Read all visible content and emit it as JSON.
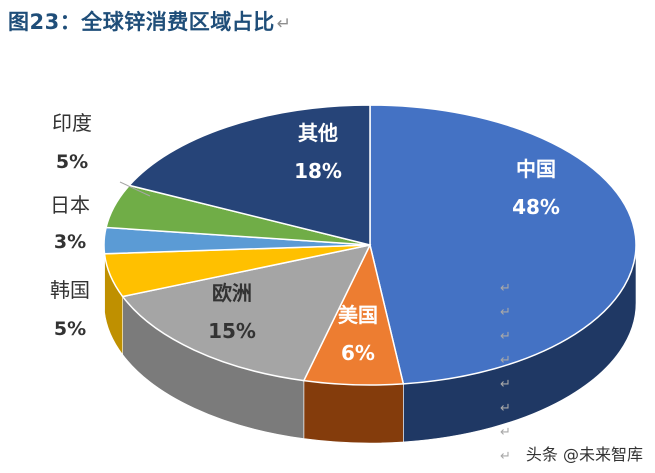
{
  "header": {
    "title": "图23：全球锌消费区域占比",
    "return_mark": "↵"
  },
  "watermark": "头条 @未来智库",
  "chart_data": {
    "type": "pie",
    "title": "图23：全球锌消费区域占比",
    "slices": [
      {
        "name": "中国",
        "value": 48,
        "label": "48%",
        "color": "#4472c4",
        "side_color": "#1f3864"
      },
      {
        "name": "美国",
        "value": 6,
        "label": "6%",
        "color": "#ed7d31",
        "side_color": "#843c0c"
      },
      {
        "name": "欧洲",
        "value": 15,
        "label": "15%",
        "color": "#a5a5a5",
        "side_color": "#7b7b7b"
      },
      {
        "name": "韩国",
        "value": 5,
        "label": "5%",
        "color": "#ffc000",
        "side_color": "#bf9000"
      },
      {
        "name": "日本",
        "value": 3,
        "label": "3%",
        "color": "#5b9bd5",
        "side_color": "#2e75b6"
      },
      {
        "name": "印度",
        "value": 5,
        "label": "5%",
        "color": "#70ad47",
        "side_color": "#548235"
      },
      {
        "name": "其他",
        "value": 18,
        "label": "18%",
        "color": "#264478",
        "side_color": "#1a2f54"
      }
    ],
    "legend": "none",
    "style": "3d"
  }
}
